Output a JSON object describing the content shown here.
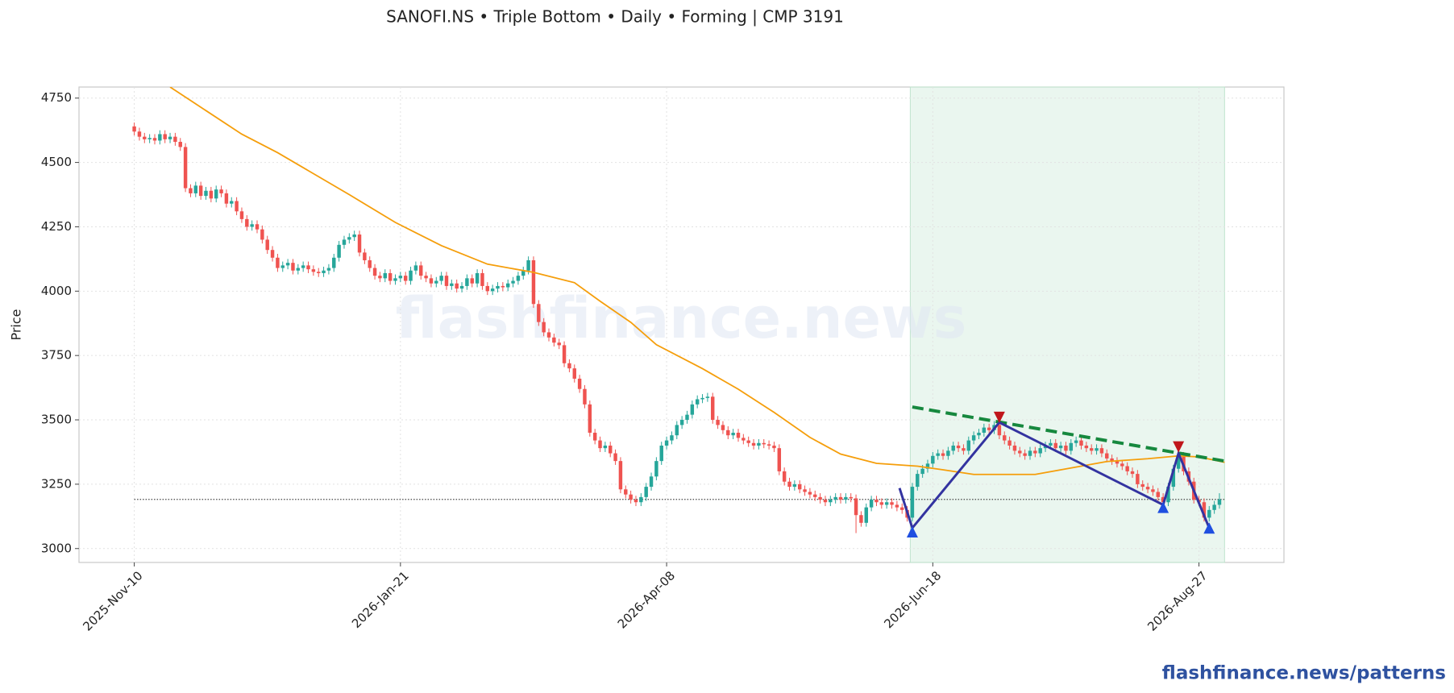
{
  "chart_data": {
    "type": "candlestick",
    "title": "SANOFI.NS  •  Triple Bottom  •  Daily  •  Forming  |  CMP 3191",
    "y_label": "Price",
    "watermark": "flashfinance.news",
    "footer": "flashfinance.news/patterns",
    "up_color": "#26a69a",
    "down_color": "#ef5350",
    "grid": true,
    "xlim": [
      -10.8,
      224.6
    ],
    "xticks": [
      {
        "value": 0,
        "label": "2025-Nov-10"
      },
      {
        "value": 52,
        "label": "2026-Jan-21"
      },
      {
        "value": 104,
        "label": "2026-Apr-08"
      },
      {
        "value": 156,
        "label": "2026-Jun-18"
      },
      {
        "value": 208,
        "label": "2026-Aug-27"
      }
    ],
    "ylim": [
      2946,
      4793
    ],
    "yticks": [
      3000,
      3250,
      3500,
      3750,
      4000,
      4250,
      4500,
      4750
    ],
    "ohlc": [
      [
        4640,
        4655,
        4605,
        4620
      ],
      [
        4620,
        4635,
        4585,
        4600
      ],
      [
        4600,
        4615,
        4575,
        4590
      ],
      [
        4590,
        4610,
        4575,
        4595
      ],
      [
        4595,
        4610,
        4570,
        4585
      ],
      [
        4585,
        4625,
        4570,
        4610
      ],
      [
        4610,
        4625,
        4575,
        4590
      ],
      [
        4590,
        4615,
        4575,
        4600
      ],
      [
        4600,
        4615,
        4565,
        4580
      ],
      [
        4580,
        4595,
        4545,
        4560
      ],
      [
        4560,
        4575,
        4385,
        4400
      ],
      [
        4400,
        4415,
        4365,
        4380
      ],
      [
        4380,
        4425,
        4365,
        4410
      ],
      [
        4410,
        4425,
        4355,
        4370
      ],
      [
        4370,
        4405,
        4355,
        4390
      ],
      [
        4390,
        4405,
        4345,
        4360
      ],
      [
        4360,
        4410,
        4345,
        4395
      ],
      [
        4395,
        4410,
        4365,
        4380
      ],
      [
        4380,
        4395,
        4325,
        4340
      ],
      [
        4340,
        4365,
        4325,
        4350
      ],
      [
        4350,
        4365,
        4295,
        4310
      ],
      [
        4310,
        4325,
        4265,
        4280
      ],
      [
        4280,
        4295,
        4235,
        4250
      ],
      [
        4250,
        4275,
        4235,
        4260
      ],
      [
        4260,
        4275,
        4225,
        4240
      ],
      [
        4240,
        4255,
        4185,
        4200
      ],
      [
        4200,
        4215,
        4145,
        4160
      ],
      [
        4160,
        4175,
        4115,
        4130
      ],
      [
        4130,
        4145,
        4075,
        4090
      ],
      [
        4090,
        4115,
        4075,
        4100
      ],
      [
        4100,
        4125,
        4085,
        4110
      ],
      [
        4110,
        4125,
        4065,
        4080
      ],
      [
        4080,
        4105,
        4065,
        4090
      ],
      [
        4090,
        4115,
        4075,
        4100
      ],
      [
        4100,
        4115,
        4070,
        4085
      ],
      [
        4085,
        4100,
        4060,
        4075
      ],
      [
        4075,
        4090,
        4055,
        4070
      ],
      [
        4070,
        4095,
        4055,
        4080
      ],
      [
        4080,
        4105,
        4065,
        4090
      ],
      [
        4090,
        4145,
        4075,
        4130
      ],
      [
        4130,
        4195,
        4115,
        4180
      ],
      [
        4180,
        4215,
        4165,
        4200
      ],
      [
        4200,
        4225,
        4185,
        4210
      ],
      [
        4210,
        4235,
        4195,
        4220
      ],
      [
        4220,
        4235,
        4135,
        4150
      ],
      [
        4150,
        4165,
        4105,
        4120
      ],
      [
        4120,
        4135,
        4075,
        4090
      ],
      [
        4090,
        4105,
        4045,
        4060
      ],
      [
        4060,
        4075,
        4035,
        4050
      ],
      [
        4050,
        4085,
        4035,
        4070
      ],
      [
        4070,
        4085,
        4025,
        4040
      ],
      [
        4040,
        4065,
        4025,
        4050
      ],
      [
        4050,
        4075,
        4035,
        4060
      ],
      [
        4060,
        4075,
        4025,
        4040
      ],
      [
        4040,
        4095,
        4025,
        4080
      ],
      [
        4080,
        4115,
        4065,
        4100
      ],
      [
        4100,
        4115,
        4045,
        4060
      ],
      [
        4060,
        4075,
        4035,
        4050
      ],
      [
        4050,
        4065,
        4015,
        4030
      ],
      [
        4030,
        4055,
        4015,
        4040
      ],
      [
        4040,
        4075,
        4025,
        4060
      ],
      [
        4060,
        4075,
        4005,
        4020
      ],
      [
        4020,
        4045,
        4005,
        4030
      ],
      [
        4030,
        4045,
        3995,
        4010
      ],
      [
        4010,
        4035,
        3995,
        4020
      ],
      [
        4020,
        4065,
        4005,
        4050
      ],
      [
        4050,
        4065,
        4015,
        4030
      ],
      [
        4030,
        4085,
        4015,
        4070
      ],
      [
        4070,
        4085,
        4005,
        4020
      ],
      [
        4020,
        4035,
        3985,
        4000
      ],
      [
        4000,
        4025,
        3985,
        4010
      ],
      [
        4010,
        4035,
        3995,
        4020
      ],
      [
        4020,
        4035,
        4000,
        4015
      ],
      [
        4015,
        4045,
        4000,
        4030
      ],
      [
        4030,
        4055,
        4015,
        4040
      ],
      [
        4040,
        4075,
        4025,
        4060
      ],
      [
        4060,
        4095,
        4045,
        4080
      ],
      [
        4080,
        4135,
        4065,
        4120
      ],
      [
        4120,
        4135,
        3935,
        3950
      ],
      [
        3950,
        3965,
        3865,
        3880
      ],
      [
        3880,
        3895,
        3825,
        3840
      ],
      [
        3840,
        3855,
        3805,
        3820
      ],
      [
        3820,
        3835,
        3785,
        3800
      ],
      [
        3800,
        3815,
        3775,
        3790
      ],
      [
        3790,
        3805,
        3705,
        3720
      ],
      [
        3720,
        3735,
        3685,
        3700
      ],
      [
        3700,
        3715,
        3645,
        3660
      ],
      [
        3660,
        3675,
        3605,
        3620
      ],
      [
        3620,
        3635,
        3545,
        3560
      ],
      [
        3560,
        3575,
        3435,
        3450
      ],
      [
        3450,
        3465,
        3405,
        3420
      ],
      [
        3420,
        3435,
        3375,
        3390
      ],
      [
        3390,
        3415,
        3375,
        3400
      ],
      [
        3400,
        3415,
        3355,
        3370
      ],
      [
        3370,
        3385,
        3325,
        3340
      ],
      [
        3340,
        3355,
        3215,
        3230
      ],
      [
        3230,
        3245,
        3195,
        3210
      ],
      [
        3210,
        3225,
        3175,
        3190
      ],
      [
        3190,
        3205,
        3165,
        3180
      ],
      [
        3180,
        3215,
        3165,
        3200
      ],
      [
        3200,
        3255,
        3185,
        3240
      ],
      [
        3240,
        3295,
        3225,
        3280
      ],
      [
        3280,
        3355,
        3265,
        3340
      ],
      [
        3340,
        3415,
        3325,
        3400
      ],
      [
        3400,
        3435,
        3385,
        3420
      ],
      [
        3420,
        3455,
        3405,
        3440
      ],
      [
        3440,
        3495,
        3425,
        3480
      ],
      [
        3480,
        3515,
        3465,
        3500
      ],
      [
        3500,
        3535,
        3485,
        3520
      ],
      [
        3520,
        3575,
        3505,
        3560
      ],
      [
        3560,
        3595,
        3545,
        3580
      ],
      [
        3580,
        3600,
        3565,
        3585
      ],
      [
        3585,
        3605,
        3570,
        3590
      ],
      [
        3590,
        3605,
        3485,
        3500
      ],
      [
        3500,
        3515,
        3465,
        3480
      ],
      [
        3480,
        3495,
        3445,
        3460
      ],
      [
        3460,
        3475,
        3425,
        3440
      ],
      [
        3440,
        3465,
        3425,
        3450
      ],
      [
        3450,
        3465,
        3415,
        3430
      ],
      [
        3430,
        3445,
        3405,
        3420
      ],
      [
        3420,
        3435,
        3395,
        3410
      ],
      [
        3410,
        3425,
        3385,
        3400
      ],
      [
        3400,
        3425,
        3385,
        3410
      ],
      [
        3410,
        3425,
        3390,
        3405
      ],
      [
        3405,
        3420,
        3385,
        3400
      ],
      [
        3400,
        3415,
        3375,
        3390
      ],
      [
        3390,
        3405,
        3285,
        3300
      ],
      [
        3300,
        3315,
        3245,
        3260
      ],
      [
        3260,
        3275,
        3225,
        3240
      ],
      [
        3240,
        3265,
        3225,
        3250
      ],
      [
        3250,
        3265,
        3215,
        3230
      ],
      [
        3230,
        3245,
        3205,
        3220
      ],
      [
        3220,
        3235,
        3195,
        3210
      ],
      [
        3210,
        3225,
        3185,
        3200
      ],
      [
        3200,
        3215,
        3175,
        3190
      ],
      [
        3190,
        3205,
        3165,
        3180
      ],
      [
        3180,
        3205,
        3165,
        3190
      ],
      [
        3190,
        3215,
        3175,
        3200
      ],
      [
        3200,
        3215,
        3175,
        3190
      ],
      [
        3190,
        3215,
        3175,
        3200
      ],
      [
        3200,
        3215,
        3180,
        3195
      ],
      [
        3195,
        3210,
        3060,
        3130
      ],
      [
        3130,
        3145,
        3085,
        3100
      ],
      [
        3100,
        3175,
        3085,
        3160
      ],
      [
        3160,
        3205,
        3145,
        3190
      ],
      [
        3190,
        3205,
        3165,
        3180
      ],
      [
        3180,
        3195,
        3155,
        3170
      ],
      [
        3170,
        3195,
        3155,
        3180
      ],
      [
        3180,
        3195,
        3155,
        3170
      ],
      [
        3170,
        3185,
        3145,
        3160
      ],
      [
        3160,
        3175,
        3135,
        3150
      ],
      [
        3150,
        3165,
        3105,
        3120
      ],
      [
        3120,
        3255,
        3105,
        3240
      ],
      [
        3240,
        3305,
        3225,
        3290
      ],
      [
        3290,
        3325,
        3275,
        3310
      ],
      [
        3310,
        3345,
        3295,
        3330
      ],
      [
        3330,
        3375,
        3315,
        3360
      ],
      [
        3360,
        3385,
        3345,
        3370
      ],
      [
        3370,
        3385,
        3345,
        3360
      ],
      [
        3360,
        3395,
        3345,
        3380
      ],
      [
        3380,
        3415,
        3365,
        3400
      ],
      [
        3400,
        3415,
        3375,
        3390
      ],
      [
        3390,
        3405,
        3365,
        3380
      ],
      [
        3380,
        3435,
        3365,
        3420
      ],
      [
        3420,
        3455,
        3405,
        3440
      ],
      [
        3440,
        3465,
        3425,
        3450
      ],
      [
        3450,
        3485,
        3435,
        3470
      ],
      [
        3470,
        3485,
        3445,
        3460
      ],
      [
        3460,
        3495,
        3445,
        3480
      ],
      [
        3480,
        3495,
        3425,
        3440
      ],
      [
        3440,
        3455,
        3405,
        3420
      ],
      [
        3420,
        3435,
        3385,
        3400
      ],
      [
        3400,
        3415,
        3365,
        3380
      ],
      [
        3380,
        3395,
        3355,
        3370
      ],
      [
        3370,
        3385,
        3345,
        3360
      ],
      [
        3360,
        3395,
        3345,
        3380
      ],
      [
        3380,
        3395,
        3355,
        3370
      ],
      [
        3370,
        3405,
        3355,
        3390
      ],
      [
        3390,
        3415,
        3375,
        3400
      ],
      [
        3400,
        3425,
        3385,
        3410
      ],
      [
        3410,
        3425,
        3375,
        3390
      ],
      [
        3390,
        3415,
        3375,
        3400
      ],
      [
        3400,
        3415,
        3365,
        3380
      ],
      [
        3380,
        3425,
        3365,
        3410
      ],
      [
        3410,
        3435,
        3395,
        3420
      ],
      [
        3420,
        3435,
        3385,
        3400
      ],
      [
        3400,
        3415,
        3375,
        3390
      ],
      [
        3390,
        3405,
        3365,
        3380
      ],
      [
        3380,
        3405,
        3365,
        3390
      ],
      [
        3390,
        3405,
        3355,
        3370
      ],
      [
        3370,
        3385,
        3335,
        3350
      ],
      [
        3350,
        3365,
        3325,
        3340
      ],
      [
        3340,
        3355,
        3315,
        3330
      ],
      [
        3330,
        3345,
        3305,
        3320
      ],
      [
        3320,
        3335,
        3285,
        3300
      ],
      [
        3300,
        3315,
        3275,
        3290
      ],
      [
        3290,
        3305,
        3235,
        3250
      ],
      [
        3250,
        3265,
        3225,
        3240
      ],
      [
        3240,
        3255,
        3215,
        3230
      ],
      [
        3230,
        3245,
        3205,
        3220
      ],
      [
        3220,
        3235,
        3185,
        3200
      ],
      [
        3200,
        3215,
        3165,
        3180
      ],
      [
        3180,
        3255,
        3165,
        3240
      ],
      [
        3240,
        3325,
        3225,
        3310
      ],
      [
        3310,
        3375,
        3295,
        3360
      ],
      [
        3360,
        3375,
        3285,
        3300
      ],
      [
        3300,
        3315,
        3245,
        3260
      ],
      [
        3260,
        3275,
        3175,
        3190
      ],
      [
        3190,
        3205,
        3165,
        3180
      ],
      [
        3180,
        3195,
        3105,
        3120
      ],
      [
        3120,
        3165,
        3105,
        3150
      ],
      [
        3150,
        3185,
        3135,
        3170
      ],
      [
        3170,
        3215,
        3155,
        3191
      ]
    ],
    "ma": {
      "color": "#f59e0b",
      "x": [
        7,
        21,
        28,
        42,
        51,
        60,
        69,
        78,
        86,
        91,
        97,
        102,
        111,
        118,
        125,
        132,
        138,
        145,
        153,
        158,
        164,
        171,
        176,
        183,
        190,
        198,
        204,
        208,
        213
      ],
      "values": [
        4793,
        4610,
        4538,
        4375,
        4267,
        4177,
        4105,
        4073,
        4033,
        3961,
        3879,
        3792,
        3699,
        3619,
        3529,
        3432,
        3367,
        3331,
        3320,
        3306,
        3288,
        3288,
        3288,
        3313,
        3338,
        3349,
        3360,
        3356,
        3335
      ]
    },
    "cmp_line": {
      "value": 3191,
      "color": "#444444",
      "x": [
        0,
        213
      ]
    },
    "pattern_zone": {
      "x": [
        151.6,
        213
      ],
      "color": "#d9efe2"
    },
    "trendline": {
      "color": "#16883e",
      "x": [
        152,
        213
      ],
      "values": [
        3550,
        3340
      ]
    },
    "zigzag": {
      "color": "#3333a0",
      "x": [
        149.5,
        152,
        169,
        201,
        204,
        210
      ],
      "values": [
        3235,
        3080,
        3490,
        3170,
        3370,
        3080
      ]
    },
    "troughs": {
      "color": "#1f4fe0",
      "x": [
        152,
        201,
        210
      ],
      "values": [
        3065,
        3160,
        3080
      ]
    },
    "peaks": {
      "color": "#c0161b",
      "x": [
        169,
        204
      ],
      "values": [
        3510,
        3395
      ]
    }
  }
}
